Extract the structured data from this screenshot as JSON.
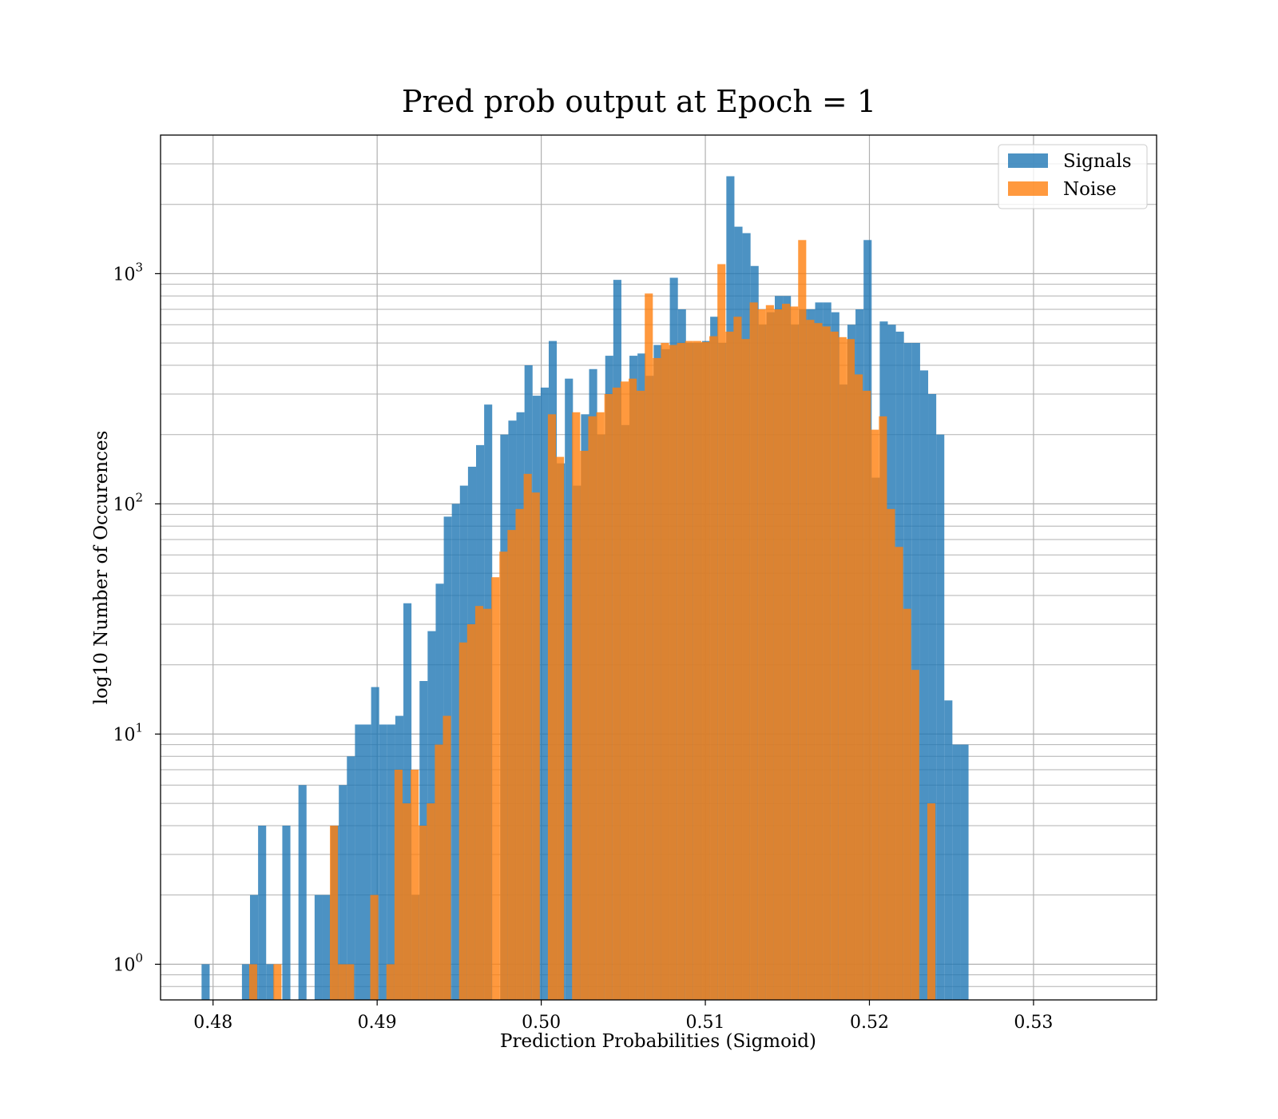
{
  "chart_data": {
    "type": "histogram",
    "title": "Pred prob output at Epoch = 1",
    "xlabel": "Prediction Probabilities (Sigmoid)",
    "ylabel": "log10 Number of Occurences",
    "x_scale": "linear",
    "y_scale": "log",
    "xlim": [
      0.4768,
      0.5375
    ],
    "ylim": [
      0.7,
      4000
    ],
    "x_ticks": [
      0.48,
      0.49,
      0.5,
      0.51,
      0.52,
      0.53
    ],
    "x_tick_labels": [
      "0.48",
      "0.49",
      "0.50",
      "0.51",
      "0.52",
      "0.53"
    ],
    "y_ticks": [
      1,
      10,
      100,
      1000
    ],
    "y_tick_labels": [
      {
        "base": "10",
        "exp": "0"
      },
      {
        "base": "10",
        "exp": "1"
      },
      {
        "base": "10",
        "exp": "2"
      },
      {
        "base": "10",
        "exp": "3"
      }
    ],
    "grid": true,
    "grid_minor_y": true,
    "legend_position": "upper right",
    "bar_alpha": 0.8,
    "series": [
      {
        "name": "Signals",
        "color": "#1f77b4",
        "bin_start": 0.4793,
        "bin_width": 0.000492,
        "counts": [
          1,
          0,
          0,
          0,
          0,
          1,
          2,
          4,
          1,
          0,
          4,
          0,
          6,
          0,
          2,
          2,
          4,
          6,
          8,
          11,
          11,
          16,
          11,
          11,
          12,
          37,
          2,
          17,
          28,
          45,
          88,
          100,
          120,
          145,
          180,
          270,
          0,
          200,
          230,
          250,
          400,
          295,
          320,
          510,
          150,
          350,
          120,
          245,
          385,
          200,
          440,
          940,
          220,
          440,
          450,
          360,
          490,
          470,
          960,
          700,
          500,
          500,
          510,
          650,
          500,
          2650,
          1600,
          1500,
          1080,
          600,
          680,
          800,
          800,
          600,
          700,
          700,
          750,
          750,
          680,
          330,
          600,
          700,
          1400,
          130,
          620,
          600,
          560,
          500,
          500,
          380,
          300,
          200,
          14,
          9,
          9,
          0,
          0,
          0,
          0,
          0,
          0,
          0
        ]
      },
      {
        "name": "Noise",
        "color": "#ff7f0e",
        "bin_start": 0.4822,
        "bin_width": 0.000492,
        "counts": [
          1,
          0,
          0,
          1,
          0,
          0,
          0,
          0,
          0,
          0,
          4,
          1,
          1,
          0,
          0,
          2,
          0,
          1,
          7,
          5,
          7,
          4,
          5,
          9,
          12,
          0,
          25,
          30,
          36,
          35,
          48,
          62,
          77,
          95,
          135,
          112,
          0,
          245,
          160,
          0,
          250,
          170,
          240,
          250,
          300,
          320,
          340,
          350,
          310,
          820,
          430,
          500,
          490,
          500,
          510,
          510,
          505,
          535,
          1100,
          560,
          650,
          520,
          750,
          700,
          730,
          700,
          740,
          720,
          1400,
          630,
          610,
          590,
          560,
          530,
          520,
          365,
          310,
          210,
          240,
          95,
          65,
          35,
          19,
          0,
          5
        ]
      }
    ]
  }
}
